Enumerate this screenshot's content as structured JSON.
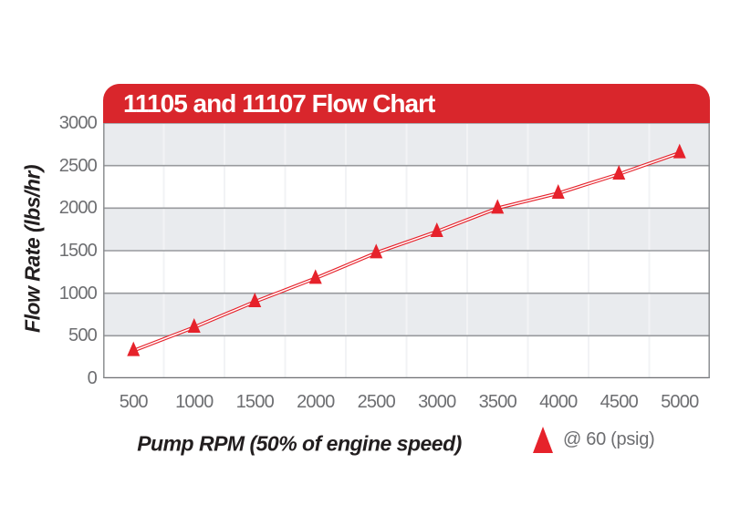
{
  "page": {
    "background": "#ffffff"
  },
  "chart_data": {
    "type": "line",
    "title": "11105 and 11107 Flow Chart",
    "xlabel": "Pump RPM (50% of engine speed)",
    "ylabel": "Flow Rate (lbs/hr)",
    "x": [
      500,
      1000,
      1500,
      2000,
      2500,
      3000,
      3500,
      4000,
      4500,
      5000
    ],
    "series": [
      {
        "name": "@ 60 (psig)",
        "marker": "triangle-up",
        "values": [
          325,
          600,
          900,
          1175,
          1475,
          1725,
          2000,
          2175,
          2400,
          2650
        ]
      }
    ],
    "xlim": [
      250,
      5250
    ],
    "ylim": [
      0,
      3000
    ],
    "x_ticks": [
      500,
      1000,
      1500,
      2000,
      2500,
      3000,
      3500,
      4000,
      4500,
      5000
    ],
    "y_ticks": [
      0,
      500,
      1000,
      1500,
      2000,
      2500,
      3000
    ],
    "x_gridlines": [
      750,
      1250,
      1750,
      2250,
      2750,
      3250,
      3750,
      4250,
      4750
    ],
    "grid": "horizontal-bands",
    "legend": {
      "label": "@ 60 (psig)",
      "position": "bottom-right"
    },
    "colors": {
      "banner_red": "#d9262c",
      "series_red": "#e6222b",
      "line_core": "#ffffff",
      "band_gray": "#e9ebee",
      "band_white": "#ffffff",
      "vgrid": "#f2f3f5",
      "hgrid": "#989a9d",
      "axis_line": "#6d6f72",
      "side_border": "#8d8f92",
      "tick_text": "#6d6e71",
      "title_text": "#221e1f"
    }
  }
}
